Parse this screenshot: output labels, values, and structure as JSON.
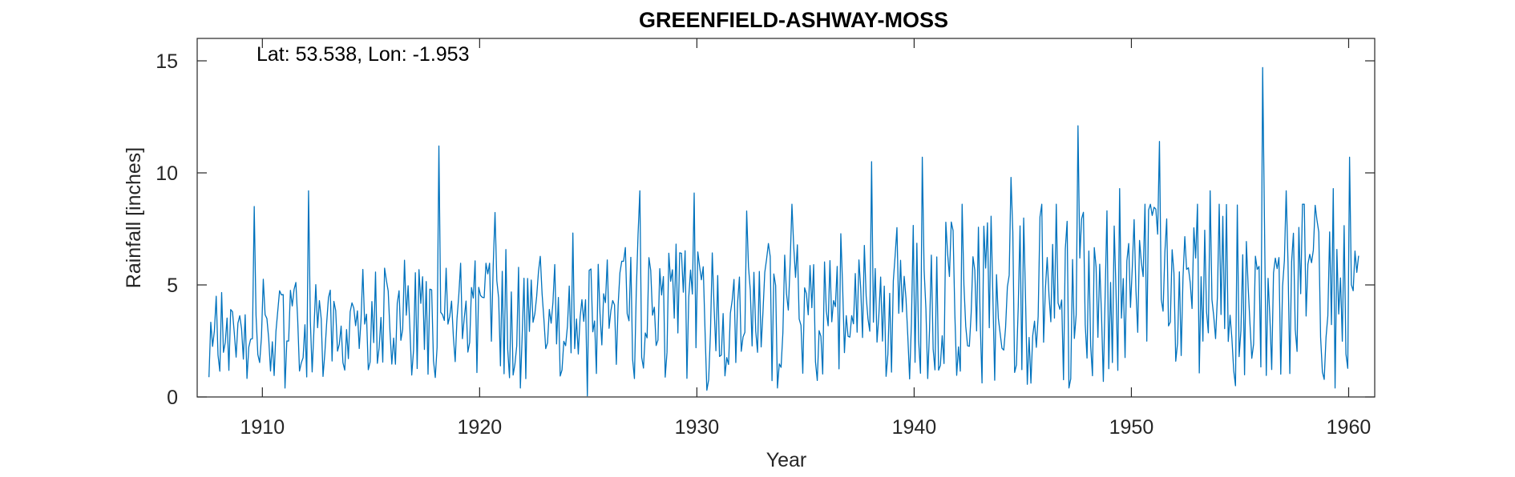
{
  "chart_data": {
    "type": "line",
    "title": "GREENFIELD-ASHWAY-MOSS",
    "annotation": "Lat: 53.538, Lon: -1.953",
    "xlabel": "Year",
    "ylabel": "Rainfall [inches]",
    "xlim": [
      1907.0,
      1961.2
    ],
    "ylim": [
      0,
      16
    ],
    "xticks": [
      1910,
      1920,
      1930,
      1940,
      1950,
      1960
    ],
    "yticks": [
      0,
      5,
      10,
      15
    ],
    "grid": false,
    "series": [
      {
        "color": "#0072BD",
        "x_start": 1907.542,
        "x_step": 0.083333,
        "peaks": [
          [
            1909.625,
            8.5
          ],
          [
            1912.125,
            9.2
          ],
          [
            1918.125,
            11.2
          ],
          [
            1927.375,
            9.2
          ],
          [
            1929.875,
            9.1
          ],
          [
            1932.292,
            8.3
          ],
          [
            1938.042,
            10.5
          ],
          [
            1940.375,
            10.7
          ],
          [
            1944.458,
            9.8
          ],
          [
            1947.542,
            12.1
          ],
          [
            1949.458,
            9.3
          ],
          [
            1951.292,
            11.4
          ],
          [
            1953.625,
            9.2
          ],
          [
            1956.042,
            14.7
          ],
          [
            1957.125,
            9.2
          ],
          [
            1959.292,
            9.3
          ],
          [
            1960.042,
            10.7
          ]
        ],
        "troughs": [
          [
            1911.042,
            0.4
          ],
          [
            1921.875,
            0.4
          ],
          [
            1924.958,
            0.05
          ],
          [
            1930.458,
            0.3
          ],
          [
            1933.708,
            0.4
          ],
          [
            1947.125,
            0.4
          ],
          [
            1954.792,
            0.5
          ],
          [
            1959.375,
            0.4
          ]
        ],
        "end_value": 6.3
      }
    ]
  }
}
